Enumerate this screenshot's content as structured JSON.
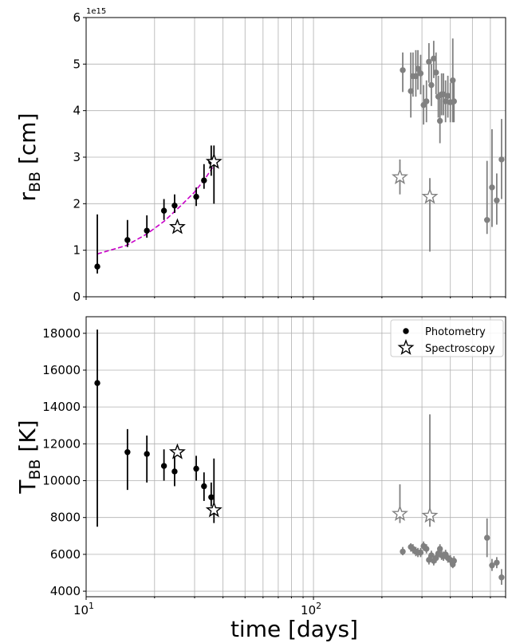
{
  "chart_data": [
    {
      "id": "top",
      "type": "scatter",
      "title": "",
      "ylabel_main": "r",
      "ylabel_sub": "BB",
      "ylabel_unit": " [cm]",
      "offset_text": "1e15",
      "xscale": "log",
      "xlim": [
        10,
        700
      ],
      "ylim": [
        0,
        6
      ],
      "yticks": [
        0,
        1,
        2,
        3,
        4,
        5,
        6
      ],
      "ytick_labels": [
        "0",
        "1",
        "2",
        "3",
        "4",
        "5",
        "6"
      ],
      "grid": true,
      "series": [
        {
          "kind": "photometry",
          "color": "#000000",
          "points": [
            {
              "x": 11.2,
              "y": 0.65,
              "lo": 0.5,
              "hi": 1.77
            },
            {
              "x": 15.2,
              "y": 1.22,
              "lo": 1.07,
              "hi": 1.65
            },
            {
              "x": 18.5,
              "y": 1.42,
              "lo": 1.27,
              "hi": 1.75
            },
            {
              "x": 22.0,
              "y": 1.85,
              "lo": 1.65,
              "hi": 2.1
            },
            {
              "x": 24.5,
              "y": 1.96,
              "lo": 1.8,
              "hi": 2.2
            },
            {
              "x": 30.5,
              "y": 2.15,
              "lo": 1.95,
              "hi": 2.35
            },
            {
              "x": 33.0,
              "y": 2.5,
              "lo": 2.32,
              "hi": 2.85
            },
            {
              "x": 35.5,
              "y": 2.9,
              "lo": 2.6,
              "hi": 3.25
            }
          ]
        },
        {
          "kind": "photometry",
          "color": "#808080",
          "points": [
            {
              "x": 247,
              "y": 4.87,
              "lo": 4.4,
              "hi": 5.25
            },
            {
              "x": 268,
              "y": 4.42,
              "lo": 3.85,
              "hi": 5.25
            },
            {
              "x": 274,
              "y": 4.74,
              "lo": 4.3,
              "hi": 5.25
            },
            {
              "x": 282,
              "y": 4.74,
              "lo": 4.3,
              "hi": 5.3
            },
            {
              "x": 288,
              "y": 4.9,
              "lo": 4.45,
              "hi": 5.3
            },
            {
              "x": 296,
              "y": 4.8,
              "lo": 4.35,
              "hi": 5.2
            },
            {
              "x": 305,
              "y": 4.12,
              "lo": 3.7,
              "hi": 4.55
            },
            {
              "x": 314,
              "y": 4.2,
              "lo": 3.75,
              "hi": 4.65
            },
            {
              "x": 322,
              "y": 5.05,
              "lo": 4.6,
              "hi": 5.45
            },
            {
              "x": 330,
              "y": 4.55,
              "lo": 4.1,
              "hi": 5.0
            },
            {
              "x": 338,
              "y": 5.12,
              "lo": 4.7,
              "hi": 5.5
            },
            {
              "x": 346,
              "y": 4.82,
              "lo": 4.35,
              "hi": 5.25
            },
            {
              "x": 354,
              "y": 4.3,
              "lo": 3.85,
              "hi": 4.75
            },
            {
              "x": 360,
              "y": 3.78,
              "lo": 3.3,
              "hi": 4.25
            },
            {
              "x": 366,
              "y": 4.35,
              "lo": 3.9,
              "hi": 4.8
            },
            {
              "x": 373,
              "y": 4.35,
              "lo": 3.9,
              "hi": 4.8
            },
            {
              "x": 381,
              "y": 4.2,
              "lo": 3.75,
              "hi": 4.65
            },
            {
              "x": 390,
              "y": 4.32,
              "lo": 3.85,
              "hi": 4.75
            },
            {
              "x": 400,
              "y": 4.18,
              "lo": 3.75,
              "hi": 4.6
            },
            {
              "x": 410,
              "y": 4.65,
              "lo": 3.75,
              "hi": 5.55
            },
            {
              "x": 415,
              "y": 4.2,
              "lo": 3.75,
              "hi": 4.6
            },
            {
              "x": 580,
              "y": 1.65,
              "lo": 1.35,
              "hi": 2.92
            },
            {
              "x": 610,
              "y": 2.35,
              "lo": 1.5,
              "hi": 3.6
            },
            {
              "x": 640,
              "y": 2.07,
              "lo": 1.55,
              "hi": 2.65
            },
            {
              "x": 672,
              "y": 2.95,
              "lo": 2.1,
              "hi": 3.82
            }
          ]
        },
        {
          "kind": "spectroscopy",
          "color": "#000000",
          "points": [
            {
              "x": 25.2,
              "y": 1.5
            },
            {
              "x": 36.5,
              "y": 2.9,
              "lo": 2.0,
              "hi": 3.25
            }
          ]
        },
        {
          "kind": "spectroscopy",
          "color": "#808080",
          "points": [
            {
              "x": 240,
              "y": 2.57,
              "lo": 2.2,
              "hi": 2.95
            },
            {
              "x": 325,
              "y": 2.15,
              "lo": 0.97,
              "hi": 2.55
            }
          ]
        }
      ],
      "fit_curve": {
        "color": "#c800c8",
        "style": "dashed",
        "points": [
          {
            "x": 11.2,
            "y": 0.92
          },
          {
            "x": 15.0,
            "y": 1.1
          },
          {
            "x": 18.5,
            "y": 1.35
          },
          {
            "x": 22.0,
            "y": 1.62
          },
          {
            "x": 26.0,
            "y": 1.95
          },
          {
            "x": 30.0,
            "y": 2.25
          },
          {
            "x": 33.5,
            "y": 2.55
          },
          {
            "x": 36.0,
            "y": 2.78
          }
        ]
      }
    },
    {
      "id": "bottom",
      "type": "scatter",
      "title": "",
      "ylabel_main": "T",
      "ylabel_sub": "BB",
      "ylabel_unit": " [K]",
      "xlabel": "time [days]",
      "xscale": "log",
      "xlim": [
        10,
        700
      ],
      "ylim": [
        3700,
        18900
      ],
      "yticks": [
        4000,
        6000,
        8000,
        10000,
        12000,
        14000,
        16000,
        18000
      ],
      "ytick_labels": [
        "4000",
        "6000",
        "8000",
        "10000",
        "12000",
        "14000",
        "16000",
        "18000"
      ],
      "xtick_labels": [
        {
          "base": "10",
          "exp": "1",
          "value": 10
        },
        {
          "base": "10",
          "exp": "2",
          "value": 100
        }
      ],
      "grid": true,
      "legend": {
        "placement": "top-right",
        "entries": [
          {
            "label": "Photometry",
            "marker": "circle"
          },
          {
            "label": "Spectroscopy",
            "marker": "star"
          }
        ]
      },
      "series": [
        {
          "kind": "photometry",
          "color": "#000000",
          "points": [
            {
              "x": 11.2,
              "y": 15300,
              "lo": 7500,
              "hi": 18200
            },
            {
              "x": 15.2,
              "y": 11550,
              "lo": 9500,
              "hi": 12800
            },
            {
              "x": 18.5,
              "y": 11450,
              "lo": 9900,
              "hi": 12450
            },
            {
              "x": 22.0,
              "y": 10800,
              "lo": 10000,
              "hi": 11700
            },
            {
              "x": 24.5,
              "y": 10500,
              "lo": 9700,
              "hi": 11300
            },
            {
              "x": 30.5,
              "y": 10650,
              "lo": 10000,
              "hi": 11350
            },
            {
              "x": 33.0,
              "y": 9700,
              "lo": 8900,
              "hi": 10450
            },
            {
              "x": 35.5,
              "y": 9100,
              "lo": 8600,
              "hi": 9900
            }
          ]
        },
        {
          "kind": "photometry",
          "color": "#808080",
          "points": [
            {
              "x": 247,
              "y": 6150,
              "lo": 5950,
              "hi": 6400
            },
            {
              "x": 268,
              "y": 6400,
              "lo": 6150,
              "hi": 6600
            },
            {
              "x": 274,
              "y": 6300,
              "lo": 6050,
              "hi": 6550
            },
            {
              "x": 282,
              "y": 6150,
              "lo": 5900,
              "hi": 6400
            },
            {
              "x": 288,
              "y": 6100,
              "lo": 5850,
              "hi": 6350
            },
            {
              "x": 296,
              "y": 6100,
              "lo": 5850,
              "hi": 6350
            },
            {
              "x": 305,
              "y": 6450,
              "lo": 6200,
              "hi": 6700
            },
            {
              "x": 314,
              "y": 6300,
              "lo": 6050,
              "hi": 6550
            },
            {
              "x": 322,
              "y": 5700,
              "lo": 5450,
              "hi": 5950
            },
            {
              "x": 330,
              "y": 5950,
              "lo": 5700,
              "hi": 6200
            },
            {
              "x": 338,
              "y": 5650,
              "lo": 5400,
              "hi": 5900
            },
            {
              "x": 346,
              "y": 5800,
              "lo": 5550,
              "hi": 6050
            },
            {
              "x": 354,
              "y": 6050,
              "lo": 5800,
              "hi": 6300
            },
            {
              "x": 360,
              "y": 6300,
              "lo": 6050,
              "hi": 6550
            },
            {
              "x": 366,
              "y": 5950,
              "lo": 5700,
              "hi": 6200
            },
            {
              "x": 373,
              "y": 5900,
              "lo": 5650,
              "hi": 6150
            },
            {
              "x": 381,
              "y": 6000,
              "lo": 5750,
              "hi": 6250
            },
            {
              "x": 390,
              "y": 5800,
              "lo": 5550,
              "hi": 6050
            },
            {
              "x": 400,
              "y": 5700,
              "lo": 5450,
              "hi": 5950
            },
            {
              "x": 410,
              "y": 5450,
              "lo": 5250,
              "hi": 5700
            },
            {
              "x": 415,
              "y": 5650,
              "lo": 5400,
              "hi": 5900
            },
            {
              "x": 580,
              "y": 6900,
              "lo": 5850,
              "hi": 7950
            },
            {
              "x": 610,
              "y": 5400,
              "lo": 5100,
              "hi": 5750
            },
            {
              "x": 640,
              "y": 5550,
              "lo": 5250,
              "hi": 5850
            },
            {
              "x": 672,
              "y": 4750,
              "lo": 4350,
              "hi": 5200
            }
          ]
        },
        {
          "kind": "spectroscopy",
          "color": "#000000",
          "points": [
            {
              "x": 25.2,
              "y": 11550
            },
            {
              "x": 36.5,
              "y": 8400,
              "lo": 7700,
              "hi": 11200
            }
          ]
        },
        {
          "kind": "spectroscopy",
          "color": "#808080",
          "points": [
            {
              "x": 240,
              "y": 8200,
              "lo": 7700,
              "hi": 9800
            },
            {
              "x": 325,
              "y": 8100,
              "lo": 7500,
              "hi": 13600
            }
          ]
        }
      ]
    }
  ]
}
